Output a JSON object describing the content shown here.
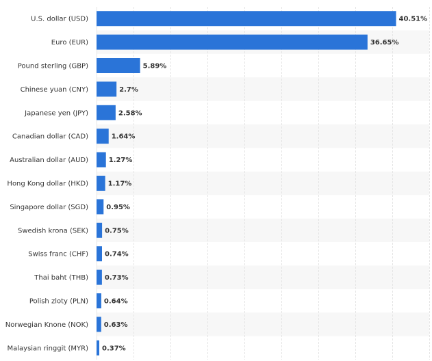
{
  "chart_data": {
    "type": "bar",
    "orientation": "horizontal",
    "categories": [
      "U.S. dollar (USD)",
      "Euro (EUR)",
      "Pound sterling (GBP)",
      "Chinese yuan (CNY)",
      "Japanese yen (JPY)",
      "Canadian dollar (CAD)",
      "Australian dollar (AUD)",
      "Hong Kong dollar (HKD)",
      "Singapore dollar (SGD)",
      "Swedish krona (SEK)",
      "Swiss franc (CHF)",
      "Thai baht (THB)",
      "Polish zloty (PLN)",
      "Norwegian Knone (NOK)",
      "Malaysian ringgit (MYR)"
    ],
    "values": [
      40.51,
      36.65,
      5.89,
      2.7,
      2.58,
      1.64,
      1.27,
      1.17,
      0.95,
      0.75,
      0.74,
      0.73,
      0.64,
      0.63,
      0.37
    ],
    "value_labels": [
      "40.51%",
      "36.65%",
      "5.89%",
      "2.7%",
      "2.58%",
      "1.64%",
      "1.27%",
      "1.17%",
      "0.95%",
      "0.75%",
      "0.74%",
      "0.73%",
      "0.64%",
      "0.63%",
      "0.37%"
    ],
    "xlim": [
      0,
      45
    ],
    "grid": true,
    "colors": {
      "bar": "#2a74d8",
      "band": "#f7f7f7",
      "grid": "#e4e4e4",
      "text": "#333333"
    }
  }
}
